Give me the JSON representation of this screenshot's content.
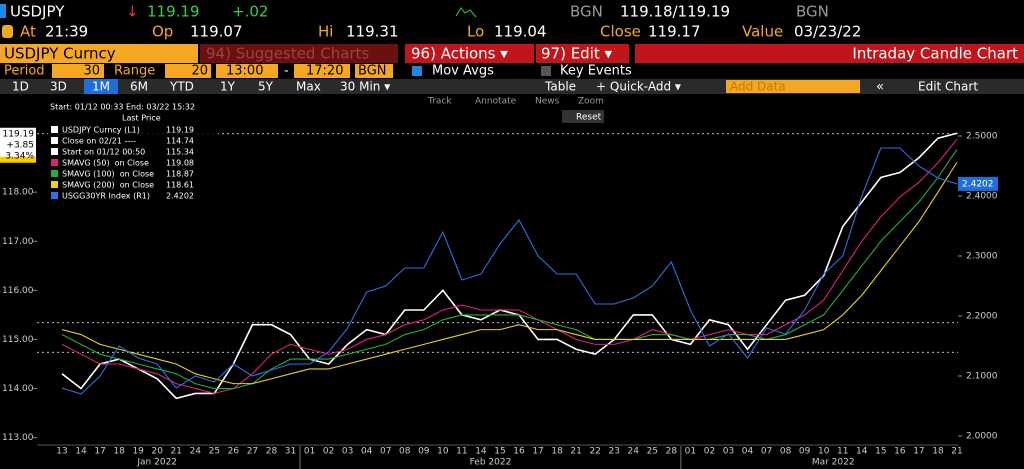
{
  "header": {
    "ticker": "USDJPY",
    "arrow": "↓",
    "last": "119.19",
    "change": "+.02",
    "bid_src": "BGN",
    "bid_ask": "119.18/119.19",
    "ask_src": "BGN",
    "at_label": "At",
    "at": "21:39",
    "op_label": "Op",
    "op": "119.07",
    "hi_label": "Hi",
    "hi": "119.31",
    "lo_label": "Lo",
    "lo": "119.04",
    "close_label": "Close",
    "close": "119.17",
    "value_label": "Value",
    "value": "03/23/22"
  },
  "menu": {
    "security": "USDJPY Curncy",
    "suggested": "94) Suggested Charts",
    "actions": "96) Actions ▾",
    "edit": "97) Edit ▾",
    "chart_kind": "Intraday Candle Chart"
  },
  "settings": {
    "period_label": "Period",
    "period": "30",
    "range_label": "Range",
    "range": "20",
    "start_time": "13:00",
    "dash": "-",
    "end_time": "17:20",
    "source": "BGN",
    "mov_avgs": "Mov Avgs",
    "key_events": "Key Events"
  },
  "tabs": {
    "items": [
      "1D",
      "3D",
      "1M",
      "6M",
      "YTD",
      "1Y",
      "5Y",
      "Max",
      "30 Min ▾"
    ],
    "table": "Table",
    "quick_add": "+ Quick-Add ▾",
    "add_data": "Add Data",
    "collapse": "«",
    "edit_chart": "Edit Chart"
  },
  "chart_tools": {
    "track": "Track",
    "annotate": "Annotate",
    "news": "News",
    "zoom": "Zoom",
    "reset": "Reset"
  },
  "chart_data": {
    "type": "line",
    "legend_title": "Start: 01/12 00:33 End: 03/22 15:32",
    "legend_column": "Last Price",
    "price_tag_change": "+3.85",
    "price_tag_pct": "3.34%",
    "categories": [
      "13",
      "14",
      "17",
      "18",
      "19",
      "20",
      "21",
      "24",
      "25",
      "26",
      "27",
      "28",
      "31",
      "01",
      "02",
      "03",
      "04",
      "07",
      "08",
      "09",
      "10",
      "11",
      "14",
      "15",
      "16",
      "17",
      "18",
      "21",
      "22",
      "23",
      "24",
      "25",
      "28",
      "01",
      "02",
      "03",
      "04",
      "07",
      "08",
      "09",
      "10",
      "11",
      "14",
      "15",
      "16",
      "17",
      "18",
      "21"
    ],
    "months": [
      {
        "label": "Jan 2022",
        "index": 5
      },
      {
        "label": "Feb 2022",
        "index": 22.5
      },
      {
        "label": "Mar 2022",
        "index": 40.5
      }
    ],
    "ylim": [
      112.85,
      120.0
    ],
    "yticks": [
      {
        "value": 113,
        "label": "113.00"
      },
      {
        "value": 114,
        "label": "114.00"
      },
      {
        "value": 115,
        "label": "115.00"
      },
      {
        "value": 116,
        "label": "116.00"
      },
      {
        "value": 117,
        "label": "117.00"
      },
      {
        "value": 118,
        "label": "118.00"
      }
    ],
    "y2lim": [
      1.985,
      2.57
    ],
    "y2ticks": [
      {
        "value": 2.0,
        "label": "2.0000"
      },
      {
        "value": 2.1,
        "label": "2.1000"
      },
      {
        "value": 2.2,
        "label": "2.2000"
      },
      {
        "value": 2.3,
        "label": "2.3000"
      },
      {
        "value": 2.4,
        "label": "2.4000"
      },
      {
        "value": 2.5,
        "label": "2.5000"
      }
    ],
    "series": [
      {
        "name": "USDJPY Curncy (L1)",
        "color": "#ffffff",
        "last": 119.19,
        "values": [
          114.3,
          114.0,
          114.5,
          114.6,
          114.4,
          114.2,
          113.8,
          113.9,
          113.9,
          114.5,
          115.3,
          115.3,
          115.1,
          114.6,
          114.5,
          114.9,
          115.2,
          115.1,
          115.6,
          115.6,
          116.0,
          115.5,
          115.4,
          115.6,
          115.5,
          115.0,
          115.0,
          114.8,
          114.7,
          115.0,
          115.5,
          115.5,
          115.0,
          114.9,
          115.4,
          115.3,
          114.8,
          115.3,
          115.8,
          115.9,
          116.3,
          117.3,
          117.8,
          118.3,
          118.4,
          118.7,
          119.1,
          119.2
        ]
      },
      {
        "name": "Close on 02/21 ----",
        "color": "#ffffff",
        "last": 114.74,
        "level": 114.74
      },
      {
        "name": "Start on 01/12 00:50",
        "color": "#ffffff",
        "last": 115.34,
        "level": 115.34
      },
      {
        "name": "SMAVG (50)  on Close",
        "color": "#e0207a",
        "last": 119.08,
        "values": [
          114.9,
          114.7,
          114.5,
          114.5,
          114.4,
          114.3,
          114.1,
          114.0,
          113.9,
          114.0,
          114.3,
          114.7,
          114.9,
          114.8,
          114.7,
          114.8,
          115.0,
          115.1,
          115.3,
          115.4,
          115.6,
          115.7,
          115.6,
          115.6,
          115.6,
          115.4,
          115.2,
          115.0,
          114.9,
          114.9,
          115.0,
          115.2,
          115.1,
          115.0,
          115.1,
          115.2,
          115.1,
          115.1,
          115.3,
          115.5,
          115.8,
          116.4,
          117.0,
          117.5,
          117.9,
          118.2,
          118.6,
          119.08
        ]
      },
      {
        "name": "SMAVG (100)  on Close",
        "color": "#1fae3c",
        "last": 118.87,
        "values": [
          115.1,
          114.9,
          114.7,
          114.6,
          114.5,
          114.4,
          114.3,
          114.1,
          114.0,
          114.0,
          114.1,
          114.4,
          114.6,
          114.6,
          114.6,
          114.7,
          114.8,
          114.9,
          115.1,
          115.2,
          115.4,
          115.5,
          115.5,
          115.5,
          115.5,
          115.4,
          115.3,
          115.2,
          115.0,
          115.0,
          115.0,
          115.1,
          115.1,
          115.0,
          115.0,
          115.1,
          115.1,
          115.0,
          115.1,
          115.3,
          115.5,
          116.0,
          116.5,
          117.0,
          117.4,
          117.8,
          118.3,
          118.87
        ]
      },
      {
        "name": "SMAVG (200)  on Close",
        "color": "#e8d21c",
        "last": 118.61,
        "values": [
          115.2,
          115.1,
          114.9,
          114.8,
          114.7,
          114.6,
          114.5,
          114.3,
          114.2,
          114.1,
          114.1,
          114.2,
          114.3,
          114.4,
          114.4,
          114.5,
          114.6,
          114.7,
          114.8,
          114.9,
          115.0,
          115.1,
          115.2,
          115.2,
          115.3,
          115.2,
          115.2,
          115.1,
          115.0,
          115.0,
          115.0,
          115.0,
          115.0,
          115.0,
          115.0,
          115.0,
          115.0,
          115.0,
          115.0,
          115.1,
          115.2,
          115.5,
          115.9,
          116.4,
          116.9,
          117.4,
          118.0,
          118.61
        ]
      },
      {
        "name": "USGG30YR Index (R1)",
        "color": "#2f6fe0",
        "last": 2.4202,
        "axis": "y2",
        "values": [
          2.08,
          2.07,
          2.1,
          2.15,
          2.13,
          2.12,
          2.08,
          2.1,
          2.09,
          2.12,
          2.1,
          2.11,
          2.12,
          2.12,
          2.14,
          2.18,
          2.24,
          2.25,
          2.28,
          2.28,
          2.34,
          2.26,
          2.27,
          2.32,
          2.36,
          2.3,
          2.27,
          2.27,
          2.22,
          2.22,
          2.23,
          2.25,
          2.29,
          2.21,
          2.15,
          2.17,
          2.13,
          2.18,
          2.17,
          2.21,
          2.27,
          2.3,
          2.4,
          2.48,
          2.48,
          2.45,
          2.43,
          2.4202
        ]
      }
    ]
  }
}
